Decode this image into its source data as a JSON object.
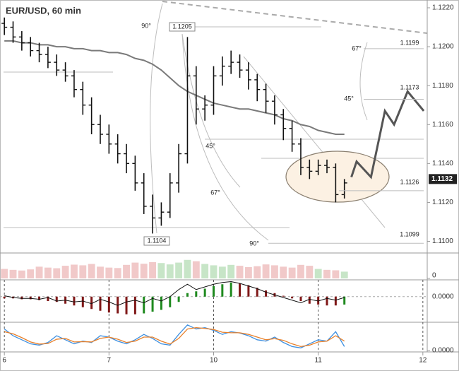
{
  "chart_data": {
    "type": "ohlc",
    "title": "EUR/USD, 60 min",
    "x": [
      0,
      2,
      4,
      6,
      8,
      10,
      12,
      14,
      16,
      18,
      20,
      22,
      24,
      26,
      28,
      30,
      32,
      34,
      36,
      38,
      40,
      42,
      44,
      46,
      48,
      50,
      52,
      54,
      56,
      58,
      60,
      62,
      64,
      66,
      68,
      70,
      72,
      74,
      76,
      78
    ],
    "xlim": [
      -1,
      97
    ],
    "xticks": [
      {
        "value": 0,
        "label": "6"
      },
      {
        "value": 24,
        "label": "7"
      },
      {
        "value": 48,
        "label": "10"
      },
      {
        "value": 72,
        "label": "11"
      },
      {
        "value": 96,
        "label": "12"
      }
    ],
    "open": [
      1.1212,
      1.121,
      1.1205,
      1.1202,
      1.1198,
      1.1196,
      1.1192,
      1.1188,
      1.1185,
      1.1178,
      1.117,
      1.116,
      1.1155,
      1.115,
      1.1145,
      1.114,
      1.113,
      1.1118,
      1.1112,
      1.1115,
      1.113,
      1.1145,
      1.1185,
      1.1168,
      1.117,
      1.1185,
      1.119,
      1.1192,
      1.1188,
      1.1183,
      1.1178,
      1.1172,
      1.1165,
      1.1158,
      1.115,
      1.1138,
      1.1136,
      1.1139,
      1.1138,
      1.1124
    ],
    "high": [
      1.1215,
      1.1213,
      1.1208,
      1.1205,
      1.1202,
      1.12,
      1.1196,
      1.1192,
      1.1188,
      1.1182,
      1.1174,
      1.1165,
      1.116,
      1.1155,
      1.115,
      1.1144,
      1.1135,
      1.1124,
      1.112,
      1.1135,
      1.115,
      1.1205,
      1.119,
      1.1175,
      1.119,
      1.1195,
      1.1198,
      1.1196,
      1.1192,
      1.1186,
      1.1181,
      1.1175,
      1.1168,
      1.1162,
      1.1153,
      1.1142,
      1.1142,
      1.1142,
      1.114,
      1.1132
    ],
    "low": [
      1.1206,
      1.1202,
      1.1198,
      1.1195,
      1.1192,
      1.1189,
      1.1185,
      1.1182,
      1.1174,
      1.1165,
      1.1155,
      1.115,
      1.1145,
      1.114,
      1.1135,
      1.1126,
      1.1114,
      1.1104,
      1.1108,
      1.1112,
      1.1125,
      1.114,
      1.116,
      1.1162,
      1.1165,
      1.118,
      1.1186,
      1.1184,
      1.1178,
      1.1172,
      1.1166,
      1.116,
      1.1152,
      1.1146,
      1.1134,
      1.1132,
      1.1134,
      1.1135,
      1.112,
      1.1122
    ],
    "close": [
      1.121,
      1.1205,
      1.1202,
      1.1198,
      1.1196,
      1.1192,
      1.1188,
      1.1185,
      1.1178,
      1.117,
      1.116,
      1.1155,
      1.115,
      1.1145,
      1.114,
      1.113,
      1.1118,
      1.1112,
      1.1115,
      1.113,
      1.1145,
      1.1185,
      1.1168,
      1.117,
      1.1185,
      1.119,
      1.1192,
      1.1188,
      1.1183,
      1.1178,
      1.1172,
      1.1165,
      1.1158,
      1.115,
      1.1138,
      1.1136,
      1.1139,
      1.1138,
      1.1124,
      1.113
    ],
    "bar_color": "#111111",
    "moving_average": {
      "color": "#7a7a7a",
      "values": [
        1.1203,
        1.1203,
        1.1202,
        1.1202,
        1.1201,
        1.1201,
        1.12,
        1.12,
        1.1199,
        1.1199,
        1.1198,
        1.1198,
        1.1197,
        1.1197,
        1.1196,
        1.1194,
        1.1193,
        1.1191,
        1.1188,
        1.1184,
        1.118,
        1.1177,
        1.1175,
        1.1173,
        1.1171,
        1.117,
        1.1169,
        1.1168,
        1.1168,
        1.1167,
        1.1166,
        1.1165,
        1.1163,
        1.1162,
        1.116,
        1.1159,
        1.1157,
        1.1156,
        1.1155,
        1.1155
      ]
    },
    "projection": {
      "color": "#555555",
      "x": [
        79.6,
        80.8,
        84.1,
        87.3,
        89.4,
        92.5,
        96.2
      ],
      "values": [
        1.1133,
        1.1141,
        1.1133,
        1.1167,
        1.116,
        1.1177,
        1.1167
      ]
    },
    "ylim": [
      1.1094,
      1.1224
    ],
    "yticks": [
      {
        "value": 1.11,
        "label": "1.1100"
      },
      {
        "value": 1.112,
        "label": "1.1120"
      },
      {
        "value": 1.114,
        "label": "1.1140"
      },
      {
        "value": 1.116,
        "label": "1.1160"
      },
      {
        "value": 1.118,
        "label": "1.1180"
      },
      {
        "value": 1.12,
        "label": "1.1200"
      },
      {
        "value": 1.122,
        "label": "1.1220"
      }
    ],
    "last_price": {
      "value": 1.1132,
      "label": "1.1132"
    },
    "price_labels": [
      {
        "value": 1.1205,
        "label": "1.1205"
      },
      {
        "value": 1.1104,
        "label": "1.1104"
      },
      {
        "value": 1.1199,
        "label": "1.1199"
      },
      {
        "value": 1.1173,
        "label": "1.1173"
      },
      {
        "value": 1.1126,
        "label": "1.1126"
      },
      {
        "value": 1.1099,
        "label": "1.1099"
      }
    ],
    "angle_labels": [
      "90°",
      "67°",
      "45°",
      "45°",
      "67°",
      "90°"
    ],
    "volume": {
      "ylim": [
        0,
        1000
      ],
      "yticks": [
        0
      ],
      "up_color": "#b9dfb9",
      "down_color": "#eebcbc",
      "values": [
        420,
        380,
        350,
        400,
        520,
        480,
        450,
        560,
        610,
        580,
        640,
        520,
        480,
        460,
        600,
        700,
        650,
        720,
        680,
        620,
        700,
        820,
        760,
        640,
        580,
        520,
        600,
        560,
        500,
        540,
        620,
        580,
        520,
        480,
        600,
        560,
        420,
        380,
        360,
        300
      ]
    },
    "macd": {
      "ylim": [
        -0.00029,
        0.00019
      ],
      "yticks": [
        {
          "value": 0,
          "label": "0.0000"
        }
      ],
      "rising_color": "#1f8a1f",
      "falling_color": "#7f1717",
      "line_color": "#111111",
      "values": [
        -2e-05,
        -2e-05,
        -3e-05,
        -3e-05,
        -4e-05,
        -5e-05,
        -6e-05,
        -8e-05,
        -0.0001,
        -0.00012,
        -0.00014,
        -0.00016,
        -0.00018,
        -0.00019,
        -0.0002,
        -0.0002,
        -0.00019,
        -0.00017,
        -0.00015,
        -0.00012,
        -6e-05,
        4e-05,
        6e-05,
        9e-05,
        0.00012,
        0.00014,
        0.00016,
        0.00015,
        0.00013,
        0.0001,
        7e-05,
        4e-05,
        1e-05,
        -2e-05,
        -5e-05,
        -8e-05,
        -9e-05,
        -0.0001,
        -0.0001,
        -9e-05
      ],
      "signal": [
        1e-05,
        -1e-05,
        -2e-05,
        -2e-05,
        -3e-05,
        -1e-05,
        -5e-05,
        -4e-05,
        -6e-05,
        -5e-05,
        -8e-05,
        -3e-05,
        -6e-05,
        -0.0001,
        -6e-05,
        -4e-05,
        -7e-05,
        -2e-05,
        -5e-05,
        0.0,
        8e-05,
        0.00014,
        8e-05,
        0.00011,
        0.00014,
        0.00016,
        0.00017,
        0.00015,
        0.00012,
        9e-05,
        5e-05,
        2e-05,
        -1e-05,
        -4e-05,
        -7e-05,
        -3e-05,
        -5e-05,
        -2e-05,
        -4e-05,
        -1e-05
      ]
    },
    "stochastic": {
      "ylim": [
        -5,
        105
      ],
      "yticks": [
        {
          "value": 0,
          "label": "0.0000"
        }
      ],
      "series": [
        {
          "color": "#3d8fe0",
          "values": [
            80,
            55,
            40,
            25,
            20,
            30,
            55,
            40,
            25,
            35,
            30,
            55,
            50,
            35,
            25,
            40,
            60,
            45,
            25,
            20,
            60,
            95,
            80,
            85,
            75,
            60,
            70,
            65,
            55,
            40,
            35,
            50,
            30,
            15,
            10,
            25,
            40,
            35,
            70,
            15
          ]
        },
        {
          "color": "#e8802a",
          "values": [
            70,
            62,
            48,
            32,
            24,
            26,
            42,
            45,
            32,
            33,
            32,
            45,
            50,
            42,
            30,
            35,
            50,
            50,
            35,
            24,
            45,
            80,
            85,
            82,
            78,
            68,
            66,
            66,
            60,
            50,
            40,
            44,
            38,
            25,
            15,
            20,
            32,
            35,
            55,
            35
          ]
        }
      ]
    }
  }
}
